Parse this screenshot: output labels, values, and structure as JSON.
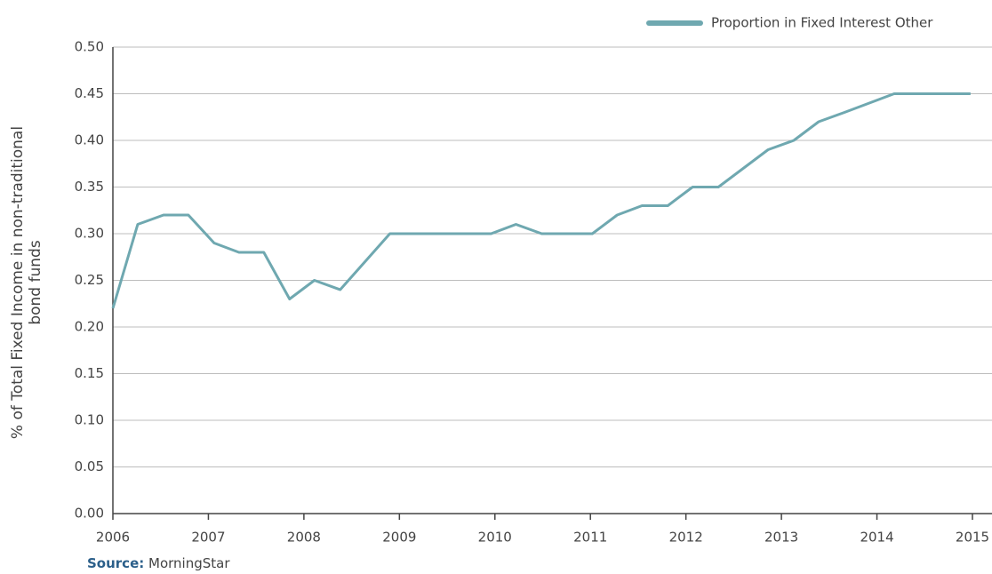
{
  "chart_data": {
    "type": "line",
    "ylabel": [
      "% of Total Fixed Income in non-traditional",
      "bond funds"
    ],
    "source_label": "Source:",
    "source": "MorningStar",
    "legend": "top-right",
    "grid": true,
    "x": [
      2006,
      2006.26,
      2006.53,
      2006.79,
      2007.06,
      2007.32,
      2007.58,
      2007.85,
      2008.11,
      2008.38,
      2008.64,
      2008.9,
      2009.17,
      2009.43,
      2009.7,
      2009.96,
      2010.22,
      2010.49,
      2010.75,
      2011.02,
      2011.28,
      2011.54,
      2011.81,
      2012.07,
      2012.34,
      2012.6,
      2012.86,
      2013.13,
      2013.39,
      2013.66,
      2013.92,
      2014.18,
      2014.45,
      2014.71,
      2014.98
    ],
    "series": [
      {
        "name": "Proportion in Fixed Interest Other",
        "color": "#6fa8b0",
        "values": [
          0.22,
          0.31,
          0.32,
          0.32,
          0.29,
          0.28,
          0.28,
          0.23,
          0.25,
          0.24,
          0.27,
          0.3,
          0.3,
          0.3,
          0.3,
          0.3,
          0.31,
          0.3,
          0.3,
          0.3,
          0.32,
          0.33,
          0.33,
          0.35,
          0.35,
          0.37,
          0.39,
          0.4,
          0.42,
          0.43,
          0.44,
          0.45,
          0.45,
          0.45,
          0.45
        ]
      }
    ],
    "xlim": [
      2006,
      2015
    ],
    "xticks": [
      2006,
      2007,
      2008,
      2009,
      2010,
      2011,
      2012,
      2013,
      2014,
      2015
    ],
    "ylim": [
      0,
      0.5
    ],
    "yticks": [
      {
        "value": 0,
        "label": "0.00"
      },
      {
        "value": 0.05,
        "label": "0.05"
      },
      {
        "value": 0.1,
        "label": "0.10"
      },
      {
        "value": 0.15,
        "label": "0.15"
      },
      {
        "value": 0.2,
        "label": "0.20"
      },
      {
        "value": 0.25,
        "label": "0.25"
      },
      {
        "value": 0.3,
        "label": "0.30"
      },
      {
        "value": 0.35,
        "label": "0.35"
      },
      {
        "value": 0.4,
        "label": "0.40"
      },
      {
        "value": 0.45,
        "label": "0.45"
      },
      {
        "value": 0.5,
        "label": "0.50"
      }
    ]
  }
}
